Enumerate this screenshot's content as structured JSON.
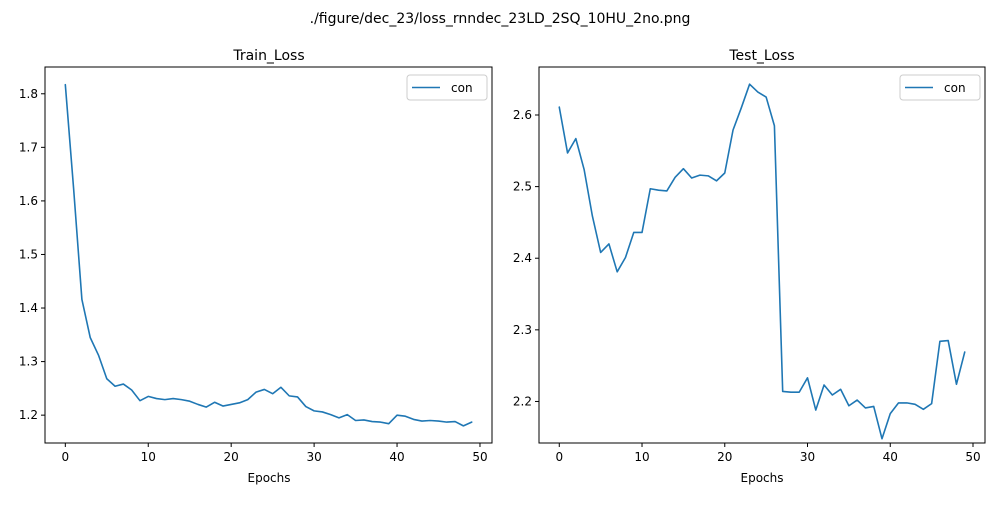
{
  "figure_title": "./figure/dec_23/loss_rnndec_23LD_2SQ_10HU_2no.png",
  "colors": {
    "series": "#1f77b4"
  },
  "chart_data": [
    {
      "type": "line",
      "title": "Train_Loss",
      "xlabel": "Epochs",
      "ylabel": "",
      "xlim": [
        -2.45,
        51.45
      ],
      "ylim": [
        1.148,
        1.85
      ],
      "xticks": [
        0,
        10,
        20,
        30,
        40,
        50
      ],
      "yticks": [
        1.2,
        1.3,
        1.4,
        1.5,
        1.6,
        1.7,
        1.8
      ],
      "ytick_labels": [
        "1.2",
        "1.3",
        "1.4",
        "1.5",
        "1.6",
        "1.7",
        "1.8"
      ],
      "legend": {
        "position": "top-right",
        "entries": [
          "con"
        ]
      },
      "series": [
        {
          "name": "con",
          "x": [
            0,
            1,
            2,
            3,
            4,
            5,
            6,
            7,
            8,
            9,
            10,
            11,
            12,
            13,
            14,
            15,
            16,
            17,
            18,
            19,
            20,
            21,
            22,
            23,
            24,
            25,
            26,
            27,
            28,
            29,
            30,
            31,
            32,
            33,
            34,
            35,
            36,
            37,
            38,
            39,
            40,
            41,
            42,
            43,
            44,
            45,
            46,
            47,
            48,
            49
          ],
          "values": [
            1.817,
            1.623,
            1.416,
            1.345,
            1.312,
            1.268,
            1.254,
            1.258,
            1.247,
            1.227,
            1.235,
            1.231,
            1.229,
            1.231,
            1.229,
            1.226,
            1.22,
            1.215,
            1.224,
            1.217,
            1.22,
            1.223,
            1.229,
            1.243,
            1.248,
            1.24,
            1.252,
            1.236,
            1.234,
            1.216,
            1.208,
            1.206,
            1.201,
            1.195,
            1.201,
            1.19,
            1.191,
            1.188,
            1.187,
            1.184,
            1.2,
            1.198,
            1.192,
            1.189,
            1.19,
            1.189,
            1.187,
            1.188,
            1.18,
            1.187
          ]
        }
      ]
    },
    {
      "type": "line",
      "title": "Test_Loss",
      "xlabel": "Epochs",
      "ylabel": "",
      "xlim": [
        -2.45,
        51.45
      ],
      "ylim": [
        2.142,
        2.667
      ],
      "xticks": [
        0,
        10,
        20,
        30,
        40,
        50
      ],
      "yticks": [
        2.2,
        2.3,
        2.4,
        2.5,
        2.6
      ],
      "ytick_labels": [
        "2.2",
        "2.3",
        "2.4",
        "2.5",
        "2.6"
      ],
      "legend": {
        "position": "top-right",
        "entries": [
          "con"
        ]
      },
      "series": [
        {
          "name": "con",
          "x": [
            0,
            1,
            2,
            3,
            4,
            5,
            6,
            7,
            8,
            9,
            10,
            11,
            12,
            13,
            14,
            15,
            16,
            17,
            18,
            19,
            20,
            21,
            22,
            23,
            24,
            25,
            26,
            27,
            28,
            29,
            30,
            31,
            32,
            33,
            34,
            35,
            36,
            37,
            38,
            39,
            40,
            41,
            42,
            43,
            44,
            45,
            46,
            47,
            48,
            49
          ],
          "values": [
            2.611,
            2.547,
            2.567,
            2.524,
            2.459,
            2.408,
            2.42,
            2.381,
            2.401,
            2.436,
            2.436,
            2.497,
            2.495,
            2.494,
            2.513,
            2.525,
            2.512,
            2.516,
            2.515,
            2.508,
            2.519,
            2.579,
            2.61,
            2.643,
            2.632,
            2.625,
            2.585,
            2.214,
            2.213,
            2.213,
            2.233,
            2.188,
            2.223,
            2.209,
            2.217,
            2.194,
            2.202,
            2.191,
            2.193,
            2.148,
            2.183,
            2.198,
            2.198,
            2.196,
            2.189,
            2.197,
            2.284,
            2.285,
            2.224,
            2.269
          ]
        }
      ]
    }
  ]
}
